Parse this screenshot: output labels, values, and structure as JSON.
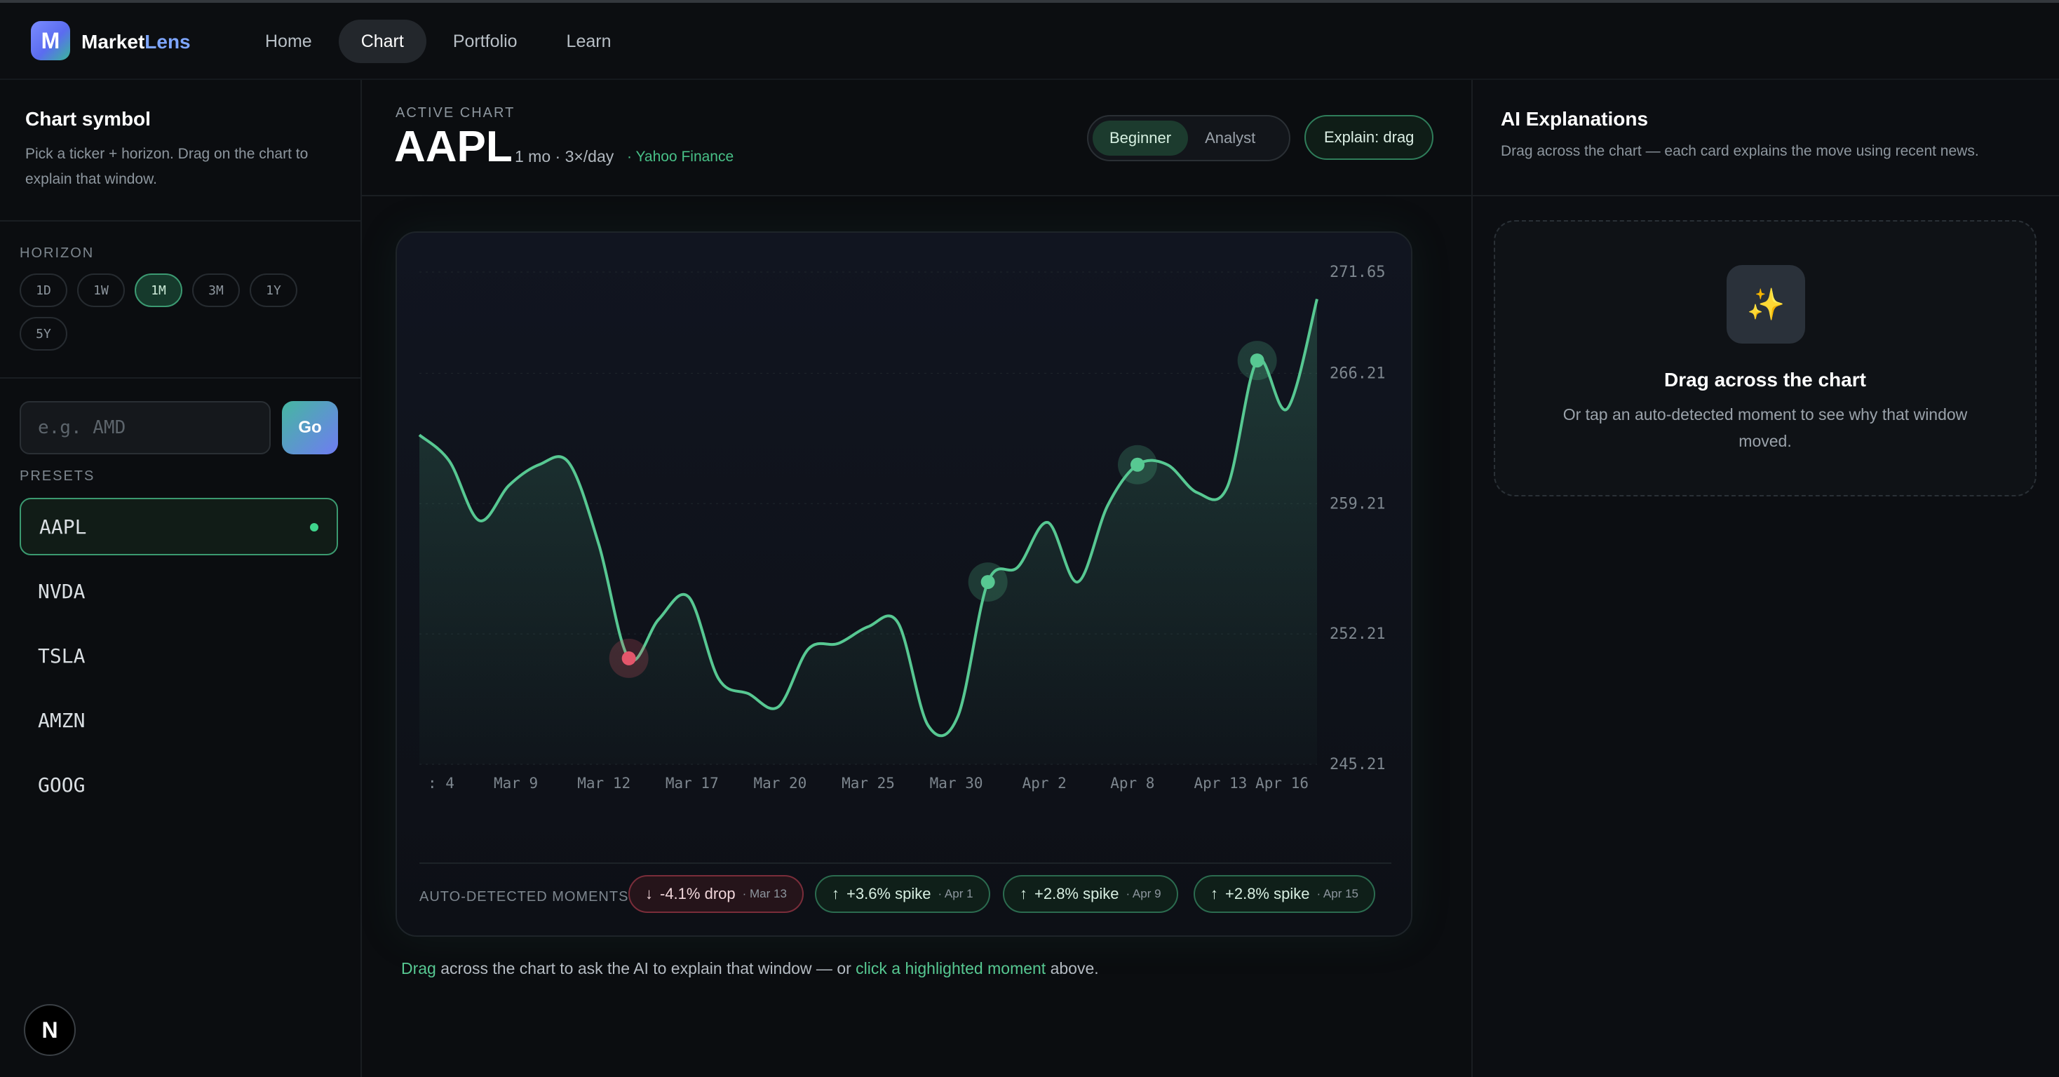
{
  "app": {
    "logo_letter": "M",
    "brand_main": "Market",
    "brand_accent": "Lens"
  },
  "nav": {
    "items": [
      "Home",
      "Chart",
      "Portfolio",
      "Learn"
    ],
    "active": "Chart"
  },
  "sidebar": {
    "title": "Chart symbol",
    "description": "Pick a ticker + horizon. Drag on the chart to explain that window.",
    "horizon_label": "HORIZON",
    "horizons": [
      "1D",
      "1W",
      "1M",
      "3M",
      "1Y",
      "5Y"
    ],
    "active_horizon": "1M",
    "input_placeholder": "e.g. AMD",
    "go_label": "Go",
    "presets_label": "PRESETS",
    "presets": [
      "AAPL",
      "NVDA",
      "TSLA",
      "AMZN",
      "GOOG"
    ],
    "active_preset": "AAPL",
    "badge_letter": "N"
  },
  "main": {
    "active_label": "ACTIVE CHART",
    "symbol": "AAPL",
    "meta": "1 mo · 3×/day",
    "source": "· Yahoo Finance",
    "modes": [
      "Beginner",
      "Analyst"
    ],
    "active_mode": "Beginner",
    "explain_label": "Explain: drag",
    "moments_label": "AUTO-DETECTED MOMENTS",
    "moments": [
      {
        "direction": "down",
        "label": "-4.1% drop",
        "date": "· Mar 13"
      },
      {
        "direction": "up",
        "label": "+3.6% spike",
        "date": "· Apr 1"
      },
      {
        "direction": "up",
        "label": "+2.8% spike",
        "date": "· Apr 9"
      },
      {
        "direction": "up",
        "label": "+2.8% spike",
        "date": "· Apr 15"
      }
    ],
    "footer": {
      "part1": "Drag",
      "part2": " across the chart to ask the AI to explain that window — or ",
      "part3": "click a highlighted moment",
      "part4": " above."
    }
  },
  "chart_data": {
    "type": "line",
    "x_ticks": [
      ": 4",
      "Mar 9",
      "Mar 12",
      "Mar 17",
      "Mar 20",
      "Mar 25",
      "Mar 30",
      "Apr 2",
      "Apr 8",
      "Apr 13",
      "Apr 16"
    ],
    "y_ticks": [
      "271.65",
      "266.21",
      "259.21",
      "252.21",
      "245.21"
    ],
    "ylim": [
      245.21,
      271.65
    ],
    "series": [
      {
        "values": [
          262.9,
          261.5,
          258.3,
          260.2,
          261.3,
          261.4,
          257.0,
          250.9,
          253.0,
          254.2,
          249.8,
          249.0,
          248.3,
          251.4,
          251.7,
          252.6,
          252.8,
          247.3,
          247.8,
          255.0,
          255.8,
          258.2,
          255.0,
          259.1,
          261.3,
          261.3,
          259.8,
          260.1,
          266.9,
          264.3,
          270.2
        ],
        "color": "#57c892"
      }
    ],
    "markers": [
      {
        "index": 7,
        "value": 250.9,
        "kind": "drop",
        "color": "#e3566b"
      },
      {
        "index": 19,
        "value": 255.0,
        "kind": "spike",
        "color": "#57c892"
      },
      {
        "index": 24,
        "value": 261.3,
        "kind": "spike",
        "color": "#57c892"
      },
      {
        "index": 28,
        "value": 266.9,
        "kind": "spike",
        "color": "#57c892"
      }
    ],
    "grid": true
  },
  "explanations": {
    "title": "AI Explanations",
    "description": "Drag across the chart — each card explains the move using recent news.",
    "icon": "sparkles-icon",
    "empty_title": "Drag across the chart",
    "empty_desc": "Or tap an auto-detected moment to see why that window moved."
  }
}
